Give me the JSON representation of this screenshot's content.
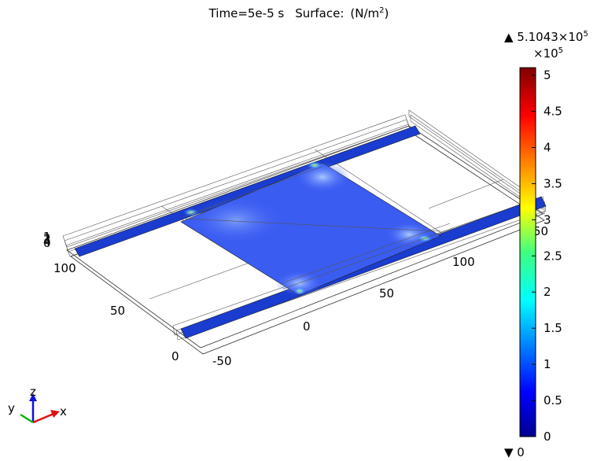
{
  "title": [
    "Time=5e-5 s",
    "Surface:",
    "(N/m",
    "2",
    ")"
  ],
  "colorbar": {
    "max_label": [
      "▲ 5.1043×10",
      "5"
    ],
    "multiplier": [
      "×10",
      "5"
    ],
    "ticks": [
      0,
      0.5,
      1,
      1.5,
      2,
      2.5,
      3,
      3.5,
      4,
      4.5,
      5
    ],
    "range": [
      0,
      5.1043
    ],
    "min_label": "▼ 0"
  },
  "axis_labels": [
    "100",
    "50",
    "0",
    "-50",
    "0",
    "50",
    "100",
    "50",
    "1",
    "2",
    "3",
    "4",
    "0"
  ],
  "triad": [
    "z",
    "y",
    "x"
  ]
}
